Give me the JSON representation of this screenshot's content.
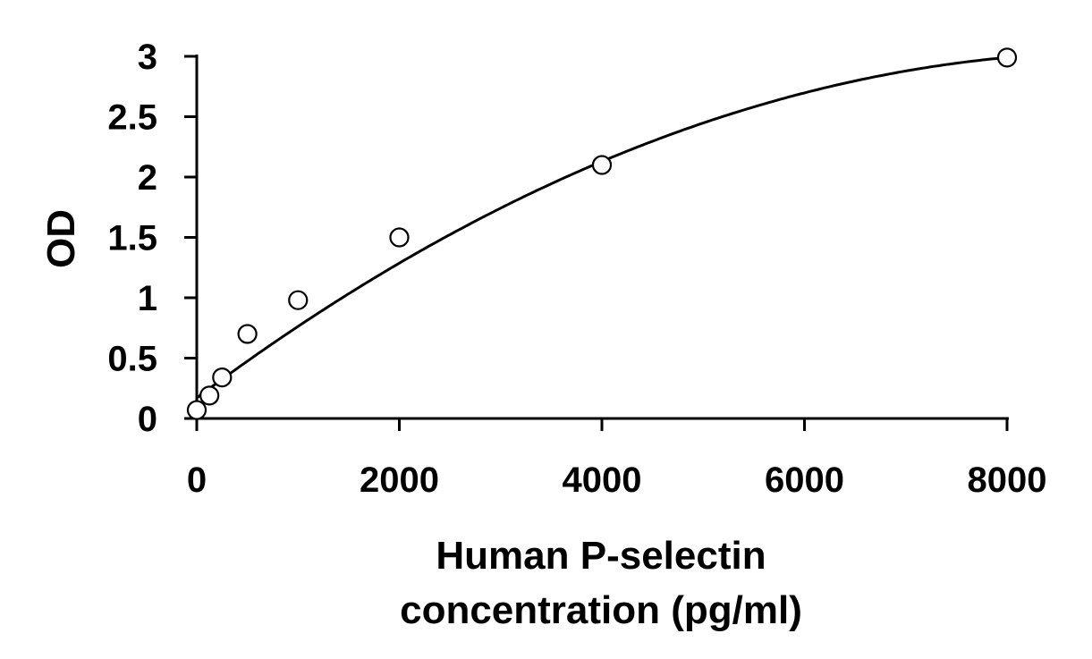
{
  "chart_data": {
    "type": "scatter",
    "xlabel_lines": [
      "Human P-selectin",
      "concentration (pg/ml)"
    ],
    "ylabel": "OD",
    "xlim": [
      0,
      8000
    ],
    "ylim": [
      0,
      3
    ],
    "x_ticks": [
      0,
      2000,
      4000,
      6000,
      8000
    ],
    "y_ticks": [
      0,
      0.5,
      1,
      1.5,
      2,
      2.5,
      3
    ],
    "x_tick_labels": [
      "0",
      "2000",
      "4000",
      "6000",
      "8000"
    ],
    "y_tick_labels": [
      "0",
      "0.5",
      "1",
      "1.5",
      "2",
      "2.5",
      "3"
    ],
    "grid": false,
    "legend": "none",
    "series": [
      {
        "x": [
          0,
          125,
          250,
          500,
          1000,
          2000,
          4000,
          8000
        ],
        "y": [
          0.07,
          0.19,
          0.34,
          0.7,
          0.98,
          1.5,
          2.1,
          2.99
        ]
      }
    ],
    "trendline": {
      "type": "polynomial",
      "coefficients": [
        0.17,
        0.000627,
        -3.43e-08
      ]
    },
    "colors": {
      "points_fill": "#ffffff",
      "points_stroke": "#000000",
      "line": "#000000"
    }
  }
}
